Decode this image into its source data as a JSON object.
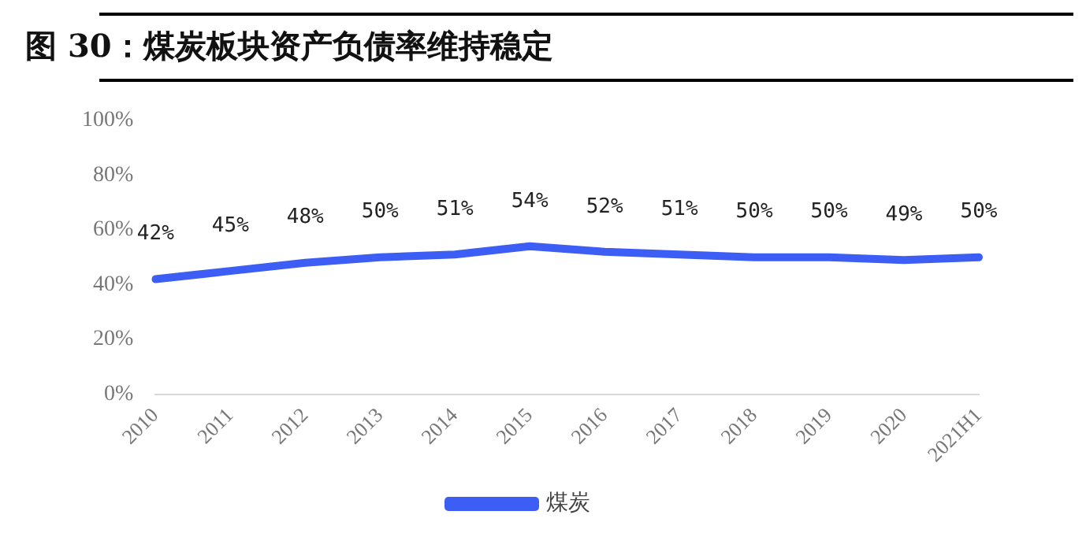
{
  "chart_data": {
    "type": "line",
    "title": "图 30：煤炭板块资产负债率维持稳定",
    "categories": [
      "2010",
      "2011",
      "2012",
      "2013",
      "2014",
      "2015",
      "2016",
      "2017",
      "2018",
      "2019",
      "2020",
      "2021H1"
    ],
    "series": [
      {
        "name": "煤炭",
        "color": "#3d5ef5",
        "values": [
          42,
          45,
          48,
          50,
          51,
          54,
          52,
          51,
          50,
          50,
          49,
          50
        ],
        "value_labels": [
          "42%",
          "45%",
          "48%",
          "50%",
          "51%",
          "54%",
          "52%",
          "51%",
          "50%",
          "50%",
          "49%",
          "50%"
        ]
      }
    ],
    "ylim": [
      0,
      100
    ],
    "yticks": [
      {
        "value": 0,
        "label": "0%"
      },
      {
        "value": 20,
        "label": "20%"
      },
      {
        "value": 40,
        "label": "40%"
      },
      {
        "value": 60,
        "label": "60%"
      },
      {
        "value": 80,
        "label": "80%"
      },
      {
        "value": 100,
        "label": "100%"
      }
    ],
    "grid": false,
    "legend": "bottom",
    "marker": "none",
    "line_style": "solid"
  }
}
